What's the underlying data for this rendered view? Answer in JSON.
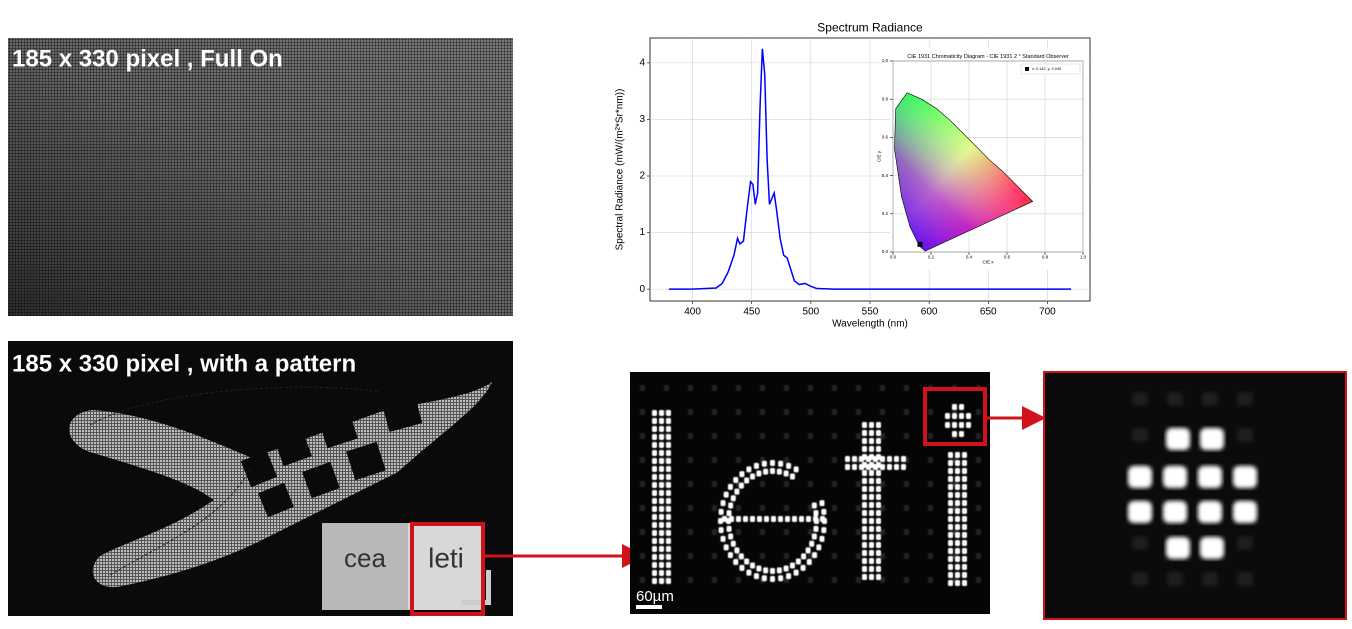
{
  "panels": {
    "full_on_label": "185 x 330 pixel , Full On",
    "pattern_label": "185 x 330 pixel , with a pattern",
    "logo_cea": "cea",
    "logo_leti": "leti",
    "scale_label": "60µm"
  },
  "chart_data": [
    {
      "type": "line",
      "title": "Spectrum Radiance",
      "xlabel": "Wavelength (nm)",
      "ylabel": "Spectral Radiance (mW/(m²*Sr*nm))",
      "x": [
        380,
        400,
        420,
        425,
        430,
        435,
        438,
        440,
        443,
        446,
        449,
        451,
        453,
        455,
        457,
        459,
        461,
        463,
        465,
        467,
        469,
        471,
        474,
        477,
        480,
        483,
        486,
        490,
        495,
        500,
        505,
        520,
        720
      ],
      "values": [
        0,
        0,
        0.02,
        0.1,
        0.3,
        0.6,
        0.9,
        0.8,
        0.85,
        1.4,
        1.9,
        1.85,
        1.5,
        1.7,
        3.2,
        4.25,
        3.8,
        2.3,
        1.5,
        1.6,
        1.7,
        1.4,
        0.9,
        0.6,
        0.55,
        0.35,
        0.15,
        0.08,
        0.1,
        0.05,
        0.01,
        0,
        0
      ],
      "color": "#0000ff",
      "xlim": [
        364,
        736
      ],
      "ylim": [
        -0.21,
        4.44
      ],
      "xticks": [
        400,
        450,
        500,
        550,
        600,
        650,
        700
      ],
      "yticks": [
        0,
        1,
        2,
        3,
        4
      ],
      "grid": true
    },
    {
      "type": "scatter",
      "title": "CIE 1931 Chromaticity Diagram - CIE 1931 2 ° Standard Observer",
      "xlabel": "CIE x",
      "ylabel": "CIE y",
      "series": [
        {
          "name": "x: 0.142, y: 0.040",
          "color": "#000000",
          "x": [
            0.142
          ],
          "values": [
            0.04
          ]
        }
      ],
      "xlim": [
        0,
        1
      ],
      "ylim": [
        0,
        1
      ],
      "xticks": [
        {
          "value": 0,
          "label": "0.0"
        },
        {
          "value": 0.2,
          "label": "0.2"
        },
        {
          "value": 0.4,
          "label": "0.4"
        },
        {
          "value": 0.6,
          "label": "0.6"
        },
        {
          "value": 0.8,
          "label": "0.8"
        },
        {
          "value": 1,
          "label": "1.0"
        }
      ],
      "yticks": [
        {
          "value": 0,
          "label": "0.0"
        },
        {
          "value": 0.2,
          "label": "0.2"
        },
        {
          "value": 0.4,
          "label": "0.4"
        },
        {
          "value": 0.6,
          "label": "0.6"
        },
        {
          "value": 0.8,
          "label": "0.8"
        },
        {
          "value": 1,
          "label": "1.0"
        }
      ],
      "grid": true,
      "legend": "upper right"
    }
  ]
}
